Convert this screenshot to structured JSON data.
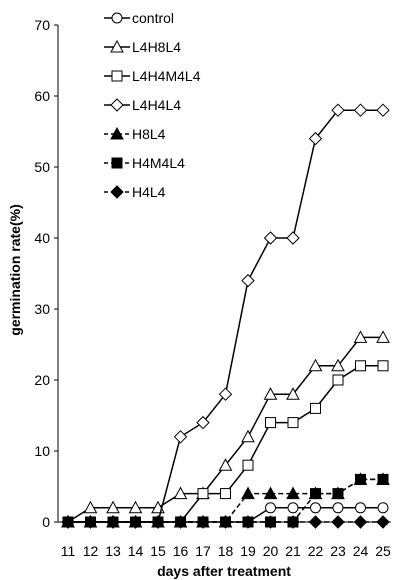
{
  "chart_data": {
    "type": "line",
    "title": "",
    "xlabel": "days after treatment",
    "ylabel": "germination rate(%)",
    "x": [
      11,
      12,
      13,
      14,
      15,
      16,
      17,
      18,
      19,
      20,
      21,
      22,
      23,
      24,
      25
    ],
    "xlim": [
      11,
      25
    ],
    "ylim": [
      0,
      70
    ],
    "y_ticks": [
      0,
      10,
      20,
      30,
      40,
      50,
      60,
      70
    ],
    "grid": false,
    "legend_position": "top-left",
    "series": [
      {
        "name": "control",
        "marker": "circle",
        "fill": "white",
        "dash": "solid",
        "values": [
          0,
          0,
          0,
          0,
          0,
          0,
          0,
          0,
          0,
          2,
          2,
          2,
          2,
          2,
          2
        ]
      },
      {
        "name": "L4H8L4",
        "marker": "triangle",
        "fill": "white",
        "dash": "solid",
        "values": [
          0,
          2,
          2,
          2,
          2,
          4,
          4,
          8,
          12,
          18,
          18,
          22,
          22,
          26,
          26
        ]
      },
      {
        "name": "L4H4M4L4",
        "marker": "square",
        "fill": "white",
        "dash": "solid",
        "values": [
          0,
          0,
          0,
          0,
          0,
          0,
          4,
          4,
          8,
          14,
          14,
          16,
          20,
          22,
          22
        ]
      },
      {
        "name": "L4H4L4",
        "marker": "diamond",
        "fill": "white",
        "dash": "solid",
        "values": [
          0,
          0,
          0,
          0,
          0,
          12,
          14,
          18,
          34,
          40,
          40,
          54,
          58,
          58,
          58
        ]
      },
      {
        "name": "H8L4",
        "marker": "triangle",
        "fill": "black",
        "dash": "dashed",
        "values": [
          0,
          0,
          0,
          0,
          0,
          0,
          0,
          0,
          4,
          4,
          4,
          4,
          4,
          6,
          6
        ]
      },
      {
        "name": "H4M4L4",
        "marker": "square",
        "fill": "black",
        "dash": "dashed",
        "values": [
          0,
          0,
          0,
          0,
          0,
          0,
          0,
          0,
          0,
          0,
          0,
          4,
          4,
          6,
          6
        ]
      },
      {
        "name": "H4L4",
        "marker": "diamond",
        "fill": "black",
        "dash": "dashed",
        "values": [
          0,
          0,
          0,
          0,
          0,
          0,
          0,
          0,
          0,
          0,
          0,
          0,
          0,
          0,
          0
        ]
      }
    ]
  }
}
